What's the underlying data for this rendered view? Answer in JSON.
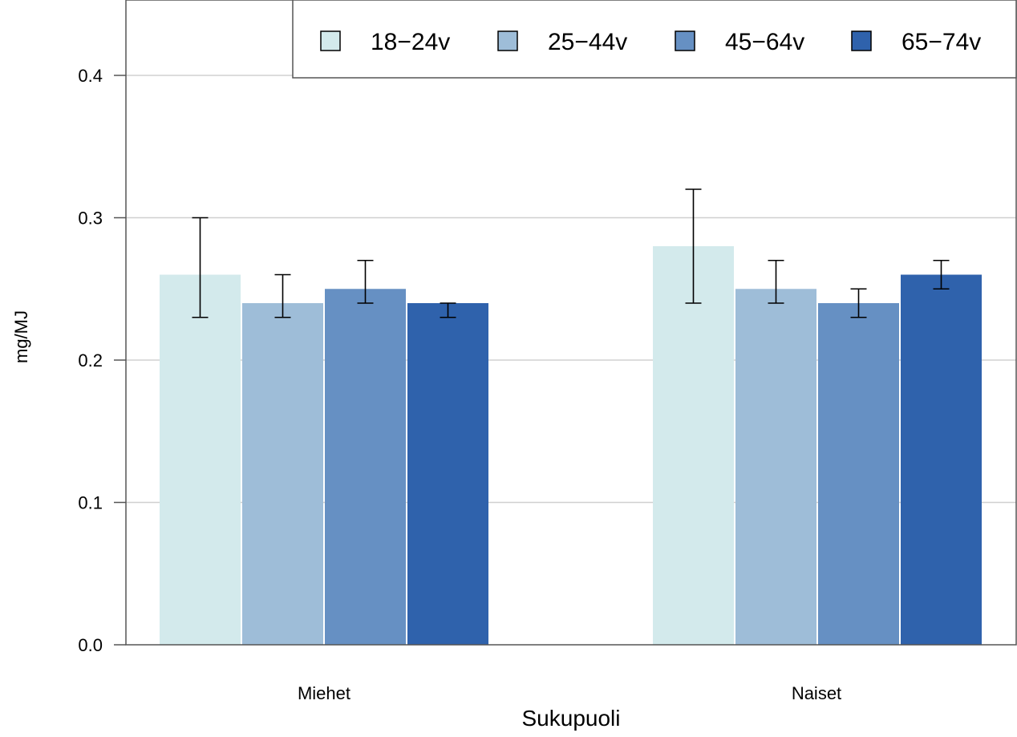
{
  "chart_data": {
    "type": "bar",
    "categories": [
      "Miehet",
      "Naiset"
    ],
    "xlabel": "Sukupuoli",
    "ylabel": "mg/MJ",
    "ylim": [
      0,
      0.45
    ],
    "yticks": [
      "0.0",
      "0.1",
      "0.2",
      "0.3",
      "0.4"
    ],
    "grid": true,
    "legend_position": "top-right",
    "series": [
      {
        "name": "18−24v",
        "color": "#d3eaec",
        "values": [
          0.26,
          0.28
        ],
        "err_low": [
          0.23,
          0.24
        ],
        "err_high": [
          0.3,
          0.32
        ]
      },
      {
        "name": "25−44v",
        "color": "#9ebdd8",
        "values": [
          0.24,
          0.25
        ],
        "err_low": [
          0.23,
          0.24
        ],
        "err_high": [
          0.26,
          0.27
        ]
      },
      {
        "name": "45−64v",
        "color": "#6690c3",
        "values": [
          0.25,
          0.24
        ],
        "err_low": [
          0.24,
          0.23
        ],
        "err_high": [
          0.27,
          0.25
        ]
      },
      {
        "name": "65−74v",
        "color": "#2f62ac",
        "values": [
          0.24,
          0.26
        ],
        "err_low": [
          0.23,
          0.25
        ],
        "err_high": [
          0.24,
          0.27
        ]
      }
    ]
  }
}
